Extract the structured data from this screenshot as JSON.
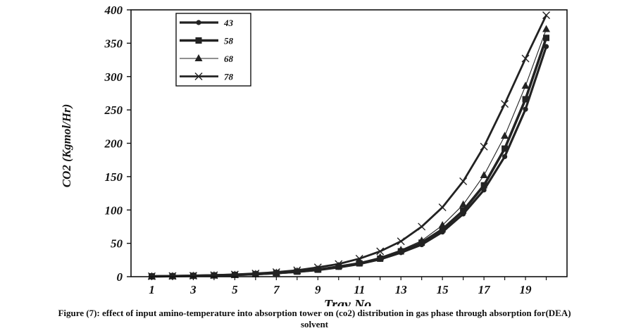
{
  "caption": {
    "line1": "Figure (7): effect of input amino-temperature into absorption tower on (co2) distribution in gas phase through absorption for(DEA)",
    "line2": "solvent"
  },
  "chart_data": {
    "type": "line",
    "title": "",
    "xlabel": "Tray No.",
    "ylabel": "CO2 (Kgmol/Hr)",
    "xlim": [
      0,
      21
    ],
    "ylim": [
      0,
      400
    ],
    "xticks": [
      1,
      3,
      5,
      7,
      9,
      11,
      13,
      15,
      17,
      19
    ],
    "yticks": [
      0,
      50,
      100,
      150,
      200,
      250,
      300,
      350,
      400
    ],
    "legend_position": "top-left",
    "grid": false,
    "x": [
      1,
      2,
      3,
      4,
      5,
      6,
      7,
      8,
      9,
      10,
      11,
      12,
      13,
      14,
      15,
      16,
      17,
      18,
      19,
      20
    ],
    "series": [
      {
        "name": "43",
        "marker": "circle",
        "stroke_width": 3.2,
        "color": "#222222",
        "values": [
          0.5,
          0.8,
          1.2,
          1.8,
          2.6,
          3.7,
          5.2,
          7.2,
          10,
          14,
          19,
          26,
          36,
          48,
          67,
          94,
          130,
          180,
          251,
          345
        ]
      },
      {
        "name": "58",
        "marker": "square",
        "stroke_width": 3.6,
        "color": "#222222",
        "values": [
          0.5,
          0.8,
          1.3,
          1.9,
          2.7,
          3.9,
          5.5,
          7.6,
          10.5,
          15,
          20,
          27,
          38,
          51,
          71,
          99,
          137,
          192,
          266,
          358
        ]
      },
      {
        "name": "68",
        "marker": "triangle",
        "stroke_width": 1.1,
        "color": "#222222",
        "values": [
          0.5,
          0.8,
          1.3,
          2.0,
          2.8,
          4.0,
          5.8,
          8.0,
          11,
          16,
          21,
          29,
          40,
          54,
          77,
          108,
          152,
          211,
          286,
          371
        ]
      },
      {
        "name": "78",
        "marker": "x",
        "stroke_width": 2.8,
        "color": "#222222",
        "values": [
          0.6,
          1.0,
          1.5,
          2.3,
          3.3,
          4.8,
          6.8,
          9.6,
          14,
          19,
          27,
          38,
          53,
          75,
          104,
          143,
          195,
          259,
          327,
          392
        ]
      }
    ]
  }
}
